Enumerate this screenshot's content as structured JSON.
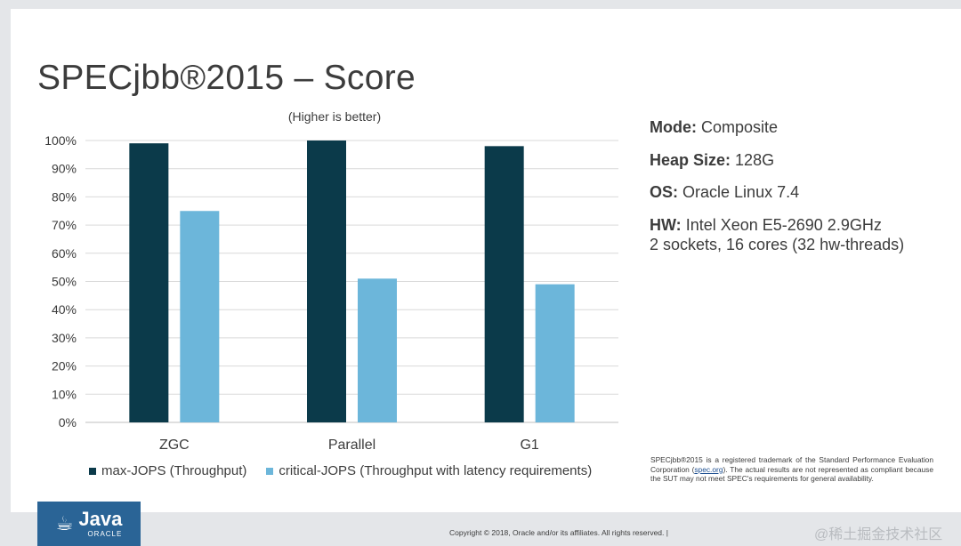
{
  "slide": {
    "title": "SPECjbb®2015 – Score",
    "subtitle": "(Higher is better)"
  },
  "chart_data": {
    "type": "bar",
    "categories": [
      "ZGC",
      "Parallel",
      "G1"
    ],
    "series": [
      {
        "name": "max-JOPS (Throughput)",
        "values": [
          99,
          100,
          98
        ],
        "color": "#0b3a4a"
      },
      {
        "name": "critical-JOPS (Throughput with latency requirements)",
        "values": [
          75,
          51,
          49
        ],
        "color": "#6cb6da"
      }
    ],
    "ylim": [
      0,
      100
    ],
    "yticks": [
      "0%",
      "10%",
      "20%",
      "30%",
      "40%",
      "50%",
      "60%",
      "70%",
      "80%",
      "90%",
      "100%"
    ],
    "grid": true,
    "legend_position": "bottom-left"
  },
  "info": {
    "mode_label": "Mode:",
    "mode_value": "Composite",
    "heap_label": "Heap Size:",
    "heap_value": "128G",
    "os_label": "OS:",
    "os_value": "Oracle Linux 7.4",
    "hw_label": "HW:",
    "hw_value": "Intel Xeon E5-2690 2.9GHz",
    "hw_value_line2": "2 sockets, 16 cores (32 hw-threads)"
  },
  "disclaimer": {
    "text_before": "SPECjbb®2015 is a registered trademark of the Standard Performance Evaluation Corporation (",
    "link": "spec.org",
    "text_after": "). The actual results are not represented as compliant because the SUT may not meet SPEC's requirements for general availability."
  },
  "footer": {
    "logo_java": "Java",
    "logo_oracle": "ORACLE",
    "copyright": "Copyright © 2018, Oracle and/or its affiliates. All rights reserved.  |",
    "watermark": "@稀土掘金技术社区"
  }
}
